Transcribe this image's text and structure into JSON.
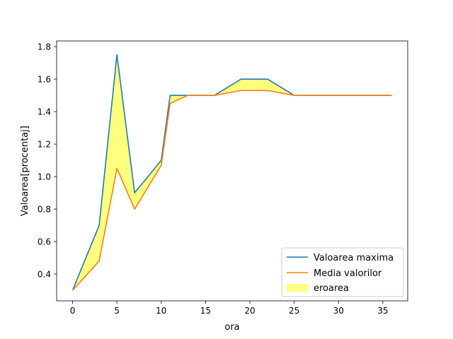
{
  "chart_data": {
    "type": "area",
    "xlabel": "ora",
    "ylabel": "Valoarea[procentaj]",
    "xlim": [
      -1.8,
      37.8
    ],
    "ylim": [
      0.235,
      1.835
    ],
    "xticks": [
      0,
      5,
      10,
      15,
      20,
      25,
      30,
      35
    ],
    "yticks": [
      0.4,
      0.6,
      0.8,
      1.0,
      1.2,
      1.4,
      1.6,
      1.8
    ],
    "ytick_labels": [
      "0.4",
      "0.6",
      "0.8",
      "1.0",
      "1.2",
      "1.4",
      "1.6",
      "1.8"
    ],
    "grid": false,
    "legend_position": "lower-right",
    "series": [
      {
        "name": "Valoarea maxima",
        "color": "#1f77b4",
        "x": [
          0,
          3,
          5,
          7,
          10,
          11,
          13,
          16,
          19,
          22,
          25,
          36
        ],
        "y": [
          0.3,
          0.7,
          1.75,
          0.9,
          1.1,
          1.5,
          1.5,
          1.5,
          1.6,
          1.6,
          1.5,
          1.5
        ]
      },
      {
        "name": "Media valorilor",
        "color": "#ff7f0e",
        "x": [
          0,
          3,
          5,
          7,
          10,
          11,
          13,
          16,
          19,
          22,
          25,
          36
        ],
        "y": [
          0.3,
          0.48,
          1.05,
          0.8,
          1.07,
          1.45,
          1.5,
          1.5,
          1.53,
          1.53,
          1.5,
          1.5
        ]
      }
    ],
    "fill": {
      "name": "eroarea",
      "color": "#ffff00",
      "alpha": 0.5,
      "between": [
        "Valoarea maxima",
        "Media valorilor"
      ]
    }
  }
}
